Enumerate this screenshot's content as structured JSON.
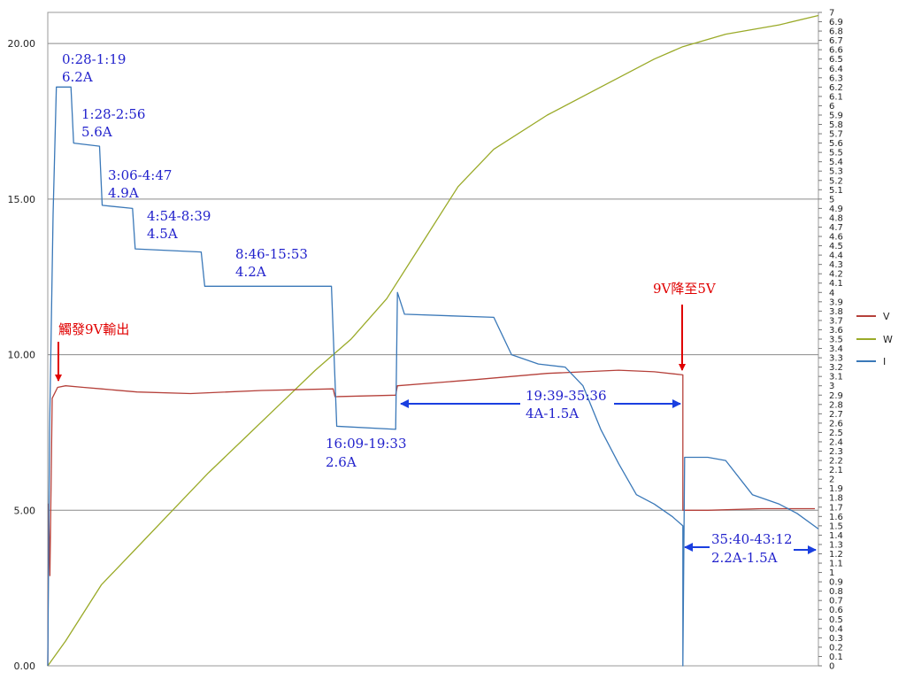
{
  "chart_data": {
    "type": "line",
    "title": "",
    "xlabel": "",
    "ylabel": "",
    "grid": true,
    "legend_position": "right",
    "y_left": {
      "range": [
        0,
        21
      ],
      "ticks": [
        "0.00",
        "5.00",
        "10.00",
        "15.00",
        "20.00"
      ],
      "tick_values": [
        0,
        5,
        10,
        15,
        20
      ]
    },
    "y_right": {
      "range": [
        0,
        7
      ],
      "tick_step": 0.1,
      "tick_labels": [
        "0",
        "0.1",
        "0.2",
        "0.3",
        "0.4",
        "0.5",
        "0.6",
        "0.7",
        "0.8",
        "0.9",
        "1",
        "1.1",
        "1.2",
        "1.3",
        "1.4",
        "1.5",
        "1.6",
        "1.7",
        "1.8",
        "1.9",
        "2",
        "2.1",
        "2.2",
        "2.3",
        "2.4",
        "2.5",
        "2.6",
        "2.7",
        "2.8",
        "2.9",
        "3",
        "3.1",
        "3.2",
        "3.3",
        "3.4",
        "3.5",
        "3.6",
        "3.7",
        "3.8",
        "3.9",
        "4",
        "4.1",
        "4.2",
        "4.3",
        "4.4",
        "4.5",
        "4.6",
        "4.7",
        "4.8",
        "4.9",
        "5",
        "5.1",
        "5.2",
        "5.3",
        "5.4",
        "5.5",
        "5.6",
        "5.7",
        "5.8",
        "5.9",
        "6",
        "6.1",
        "6.2",
        "6.3",
        "6.4",
        "6.5",
        "6.6",
        "6.7",
        "6.8",
        "6.9",
        "7"
      ]
    },
    "x_range": [
      0,
      43.2
    ],
    "series": [
      {
        "name": "V",
        "color": "#b5403a",
        "axis": "left",
        "points": [
          [
            0,
            0
          ],
          [
            0.05,
            5.2
          ],
          [
            0.12,
            2.9
          ],
          [
            0.25,
            8.6
          ],
          [
            0.55,
            8.95
          ],
          [
            1.0,
            9.0
          ],
          [
            2.0,
            8.95
          ],
          [
            3.0,
            8.9
          ],
          [
            5.0,
            8.8
          ],
          [
            8.0,
            8.75
          ],
          [
            12.0,
            8.85
          ],
          [
            16.0,
            8.9
          ],
          [
            16.1,
            8.65
          ],
          [
            19.5,
            8.7
          ],
          [
            19.6,
            9.0
          ],
          [
            24.0,
            9.2
          ],
          [
            28.0,
            9.4
          ],
          [
            32.0,
            9.5
          ],
          [
            34.0,
            9.45
          ],
          [
            35.6,
            9.35
          ],
          [
            35.6,
            5.0
          ],
          [
            37.0,
            5.0
          ],
          [
            40.0,
            5.05
          ],
          [
            43.0,
            5.05
          ]
        ]
      },
      {
        "name": "W",
        "color": "#9aaa28",
        "axis": "left",
        "points": [
          [
            0,
            0
          ],
          [
            1.0,
            0.8
          ],
          [
            3.0,
            2.6
          ],
          [
            5.0,
            3.8
          ],
          [
            7.0,
            5.0
          ],
          [
            9.0,
            6.2
          ],
          [
            11.0,
            7.3
          ],
          [
            13.0,
            8.4
          ],
          [
            15.0,
            9.5
          ],
          [
            17.0,
            10.5
          ],
          [
            19.0,
            11.8
          ],
          [
            21.0,
            13.6
          ],
          [
            23.0,
            15.4
          ],
          [
            25.0,
            16.6
          ],
          [
            28.0,
            17.7
          ],
          [
            31.0,
            18.6
          ],
          [
            34.0,
            19.5
          ],
          [
            35.6,
            19.9
          ],
          [
            38.0,
            20.3
          ],
          [
            41.0,
            20.6
          ],
          [
            43.2,
            20.9
          ]
        ]
      },
      {
        "name": "I",
        "color": "#3a78b8",
        "axis": "left",
        "points": [
          [
            0,
            0
          ],
          [
            0.1,
            7.5
          ],
          [
            0.3,
            14.5
          ],
          [
            0.48,
            18.6
          ],
          [
            1.3,
            18.6
          ],
          [
            1.45,
            16.8
          ],
          [
            2.9,
            16.7
          ],
          [
            3.05,
            14.8
          ],
          [
            4.75,
            14.7
          ],
          [
            4.9,
            13.4
          ],
          [
            8.6,
            13.3
          ],
          [
            8.8,
            12.2
          ],
          [
            15.9,
            12.2
          ],
          [
            16.2,
            7.7
          ],
          [
            19.5,
            7.6
          ],
          [
            19.6,
            12.0
          ],
          [
            20.0,
            11.3
          ],
          [
            25.0,
            11.2
          ],
          [
            26.0,
            10.0
          ],
          [
            27.5,
            9.7
          ],
          [
            29.0,
            9.6
          ],
          [
            30.0,
            9.0
          ],
          [
            31.0,
            7.6
          ],
          [
            32.0,
            6.5
          ],
          [
            33.0,
            5.5
          ],
          [
            34.0,
            5.2
          ],
          [
            35.0,
            4.8
          ],
          [
            35.6,
            4.5
          ],
          [
            35.6,
            0.0
          ],
          [
            35.7,
            6.7
          ],
          [
            37.0,
            6.7
          ],
          [
            38.0,
            6.6
          ],
          [
            39.5,
            5.5
          ],
          [
            41.0,
            5.2
          ],
          [
            42.0,
            4.9
          ],
          [
            43.2,
            4.4
          ]
        ]
      }
    ],
    "annotations": [
      {
        "text": "0:28-1:19",
        "color": "#2222cc"
      },
      {
        "text": "6.2A",
        "color": "#2222cc"
      },
      {
        "text": "1:28-2:56",
        "color": "#2222cc"
      },
      {
        "text": "5.6A",
        "color": "#2222cc"
      },
      {
        "text": "3:06-4:47",
        "color": "#2222cc"
      },
      {
        "text": "4.9A",
        "color": "#2222cc"
      },
      {
        "text": "4:54-8:39",
        "color": "#2222cc"
      },
      {
        "text": "4.5A",
        "color": "#2222cc"
      },
      {
        "text": "8:46-15:53",
        "color": "#2222cc"
      },
      {
        "text": "4.2A",
        "color": "#2222cc"
      },
      {
        "text": "觸發9V輸出",
        "color": "#e00000"
      },
      {
        "text": "16:09-19:33",
        "color": "#2222cc"
      },
      {
        "text": "2.6A",
        "color": "#2222cc"
      },
      {
        "text": "19:39-35:36",
        "color": "#2222cc"
      },
      {
        "text": "4A-1.5A",
        "color": "#2222cc"
      },
      {
        "text": "9V降至5V",
        "color": "#e00000"
      },
      {
        "text": "35:40-43:12",
        "color": "#2222cc"
      },
      {
        "text": "2.2A-1.5A",
        "color": "#2222cc"
      }
    ]
  }
}
